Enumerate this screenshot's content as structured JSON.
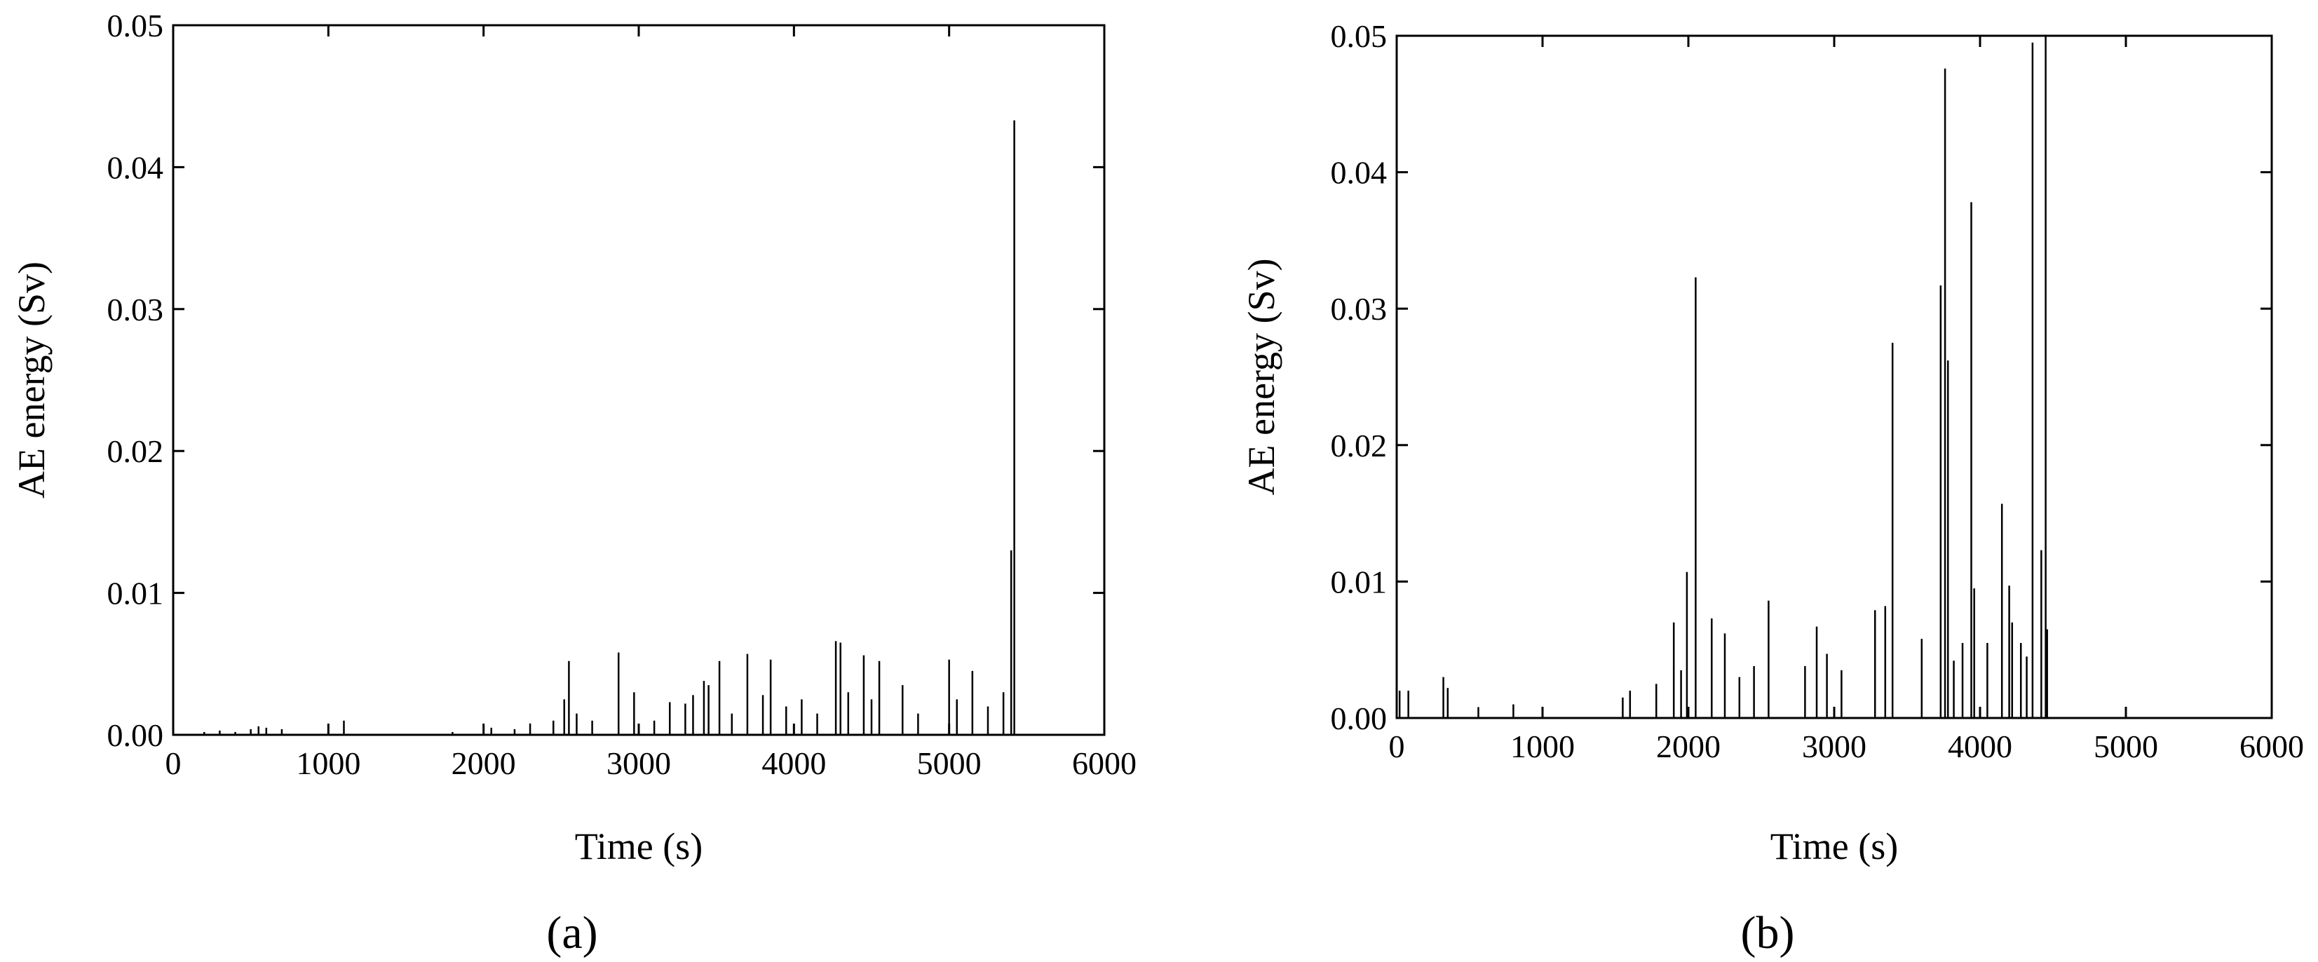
{
  "chart_data": [
    {
      "type": "spike",
      "panel_label": "(a)",
      "x_label": "Time (s)",
      "y_label": "AE energy (Sv)",
      "color": "#000000",
      "x": [
        200,
        300,
        400,
        500,
        550,
        600,
        700,
        1100,
        1800,
        2050,
        2200,
        2300,
        2450,
        2520,
        2550,
        2600,
        2700,
        2870,
        2970,
        3100,
        3200,
        3300,
        3350,
        3420,
        3450,
        3520,
        3600,
        3700,
        3800,
        3850,
        3950,
        4050,
        4150,
        4270,
        4300,
        4350,
        4450,
        4500,
        4550,
        4700,
        4800,
        5000,
        5050,
        5150,
        5250,
        5350,
        5400,
        5420
      ],
      "values": [
        0.0002,
        0.0003,
        0.0002,
        0.0004,
        0.0006,
        0.0005,
        0.0004,
        0.001,
        0.0002,
        0.0005,
        0.0004,
        0.0008,
        0.001,
        0.0025,
        0.0052,
        0.0015,
        0.001,
        0.0058,
        0.003,
        0.001,
        0.0023,
        0.0022,
        0.0028,
        0.0038,
        0.0035,
        0.0052,
        0.0015,
        0.0057,
        0.0028,
        0.0053,
        0.002,
        0.0025,
        0.0015,
        0.0066,
        0.0065,
        0.003,
        0.0056,
        0.0025,
        0.0052,
        0.0035,
        0.0015,
        0.0053,
        0.0025,
        0.0045,
        0.002,
        0.003,
        0.013,
        0.0433
      ],
      "xlim": [
        0,
        6000
      ],
      "xticks": [
        0,
        1000,
        2000,
        3000,
        4000,
        5000,
        6000
      ],
      "ylim": [
        0,
        0.05
      ],
      "yticks": [
        {
          "value": 0,
          "label": "0.00"
        },
        {
          "value": 0.01,
          "label": "0.01"
        },
        {
          "value": 0.02,
          "label": "0.02"
        },
        {
          "value": 0.03,
          "label": "0.03"
        },
        {
          "value": 0.04,
          "label": "0.04"
        },
        {
          "value": 0.05,
          "label": "0.05"
        }
      ]
    },
    {
      "type": "spike",
      "panel_label": "(b)",
      "x_label": "Time (s)",
      "y_label": "AE energy (Sv)",
      "color": "#000000",
      "x": [
        20,
        80,
        320,
        350,
        560,
        800,
        1550,
        1600,
        1780,
        1900,
        1950,
        1990,
        2050,
        2160,
        2250,
        2350,
        2450,
        2550,
        2800,
        2880,
        2950,
        3050,
        3280,
        3350,
        3400,
        3600,
        3730,
        3760,
        3780,
        3820,
        3880,
        3940,
        3960,
        4050,
        4150,
        4200,
        4220,
        4280,
        4320,
        4360,
        4420,
        4450,
        4460
      ],
      "values": [
        0.002,
        0.002,
        0.003,
        0.0022,
        0.0008,
        0.001,
        0.0015,
        0.002,
        0.0025,
        0.007,
        0.0035,
        0.0107,
        0.0323,
        0.0073,
        0.0062,
        0.003,
        0.0038,
        0.0086,
        0.0038,
        0.0067,
        0.0047,
        0.0035,
        0.0079,
        0.0082,
        0.0275,
        0.0058,
        0.0317,
        0.0476,
        0.0262,
        0.0042,
        0.0055,
        0.0378,
        0.0095,
        0.0055,
        0.0157,
        0.0097,
        0.007,
        0.0055,
        0.0045,
        0.0495,
        0.0123,
        0.05,
        0.0065
      ],
      "xlim": [
        0,
        6000
      ],
      "xticks": [
        0,
        1000,
        2000,
        3000,
        4000,
        5000,
        6000
      ],
      "ylim": [
        0,
        0.05
      ],
      "yticks": [
        {
          "value": 0,
          "label": "0.00"
        },
        {
          "value": 0.01,
          "label": "0.01"
        },
        {
          "value": 0.02,
          "label": "0.02"
        },
        {
          "value": 0.03,
          "label": "0.03"
        },
        {
          "value": 0.04,
          "label": "0.04"
        },
        {
          "value": 0.05,
          "label": "0.05"
        }
      ]
    }
  ]
}
